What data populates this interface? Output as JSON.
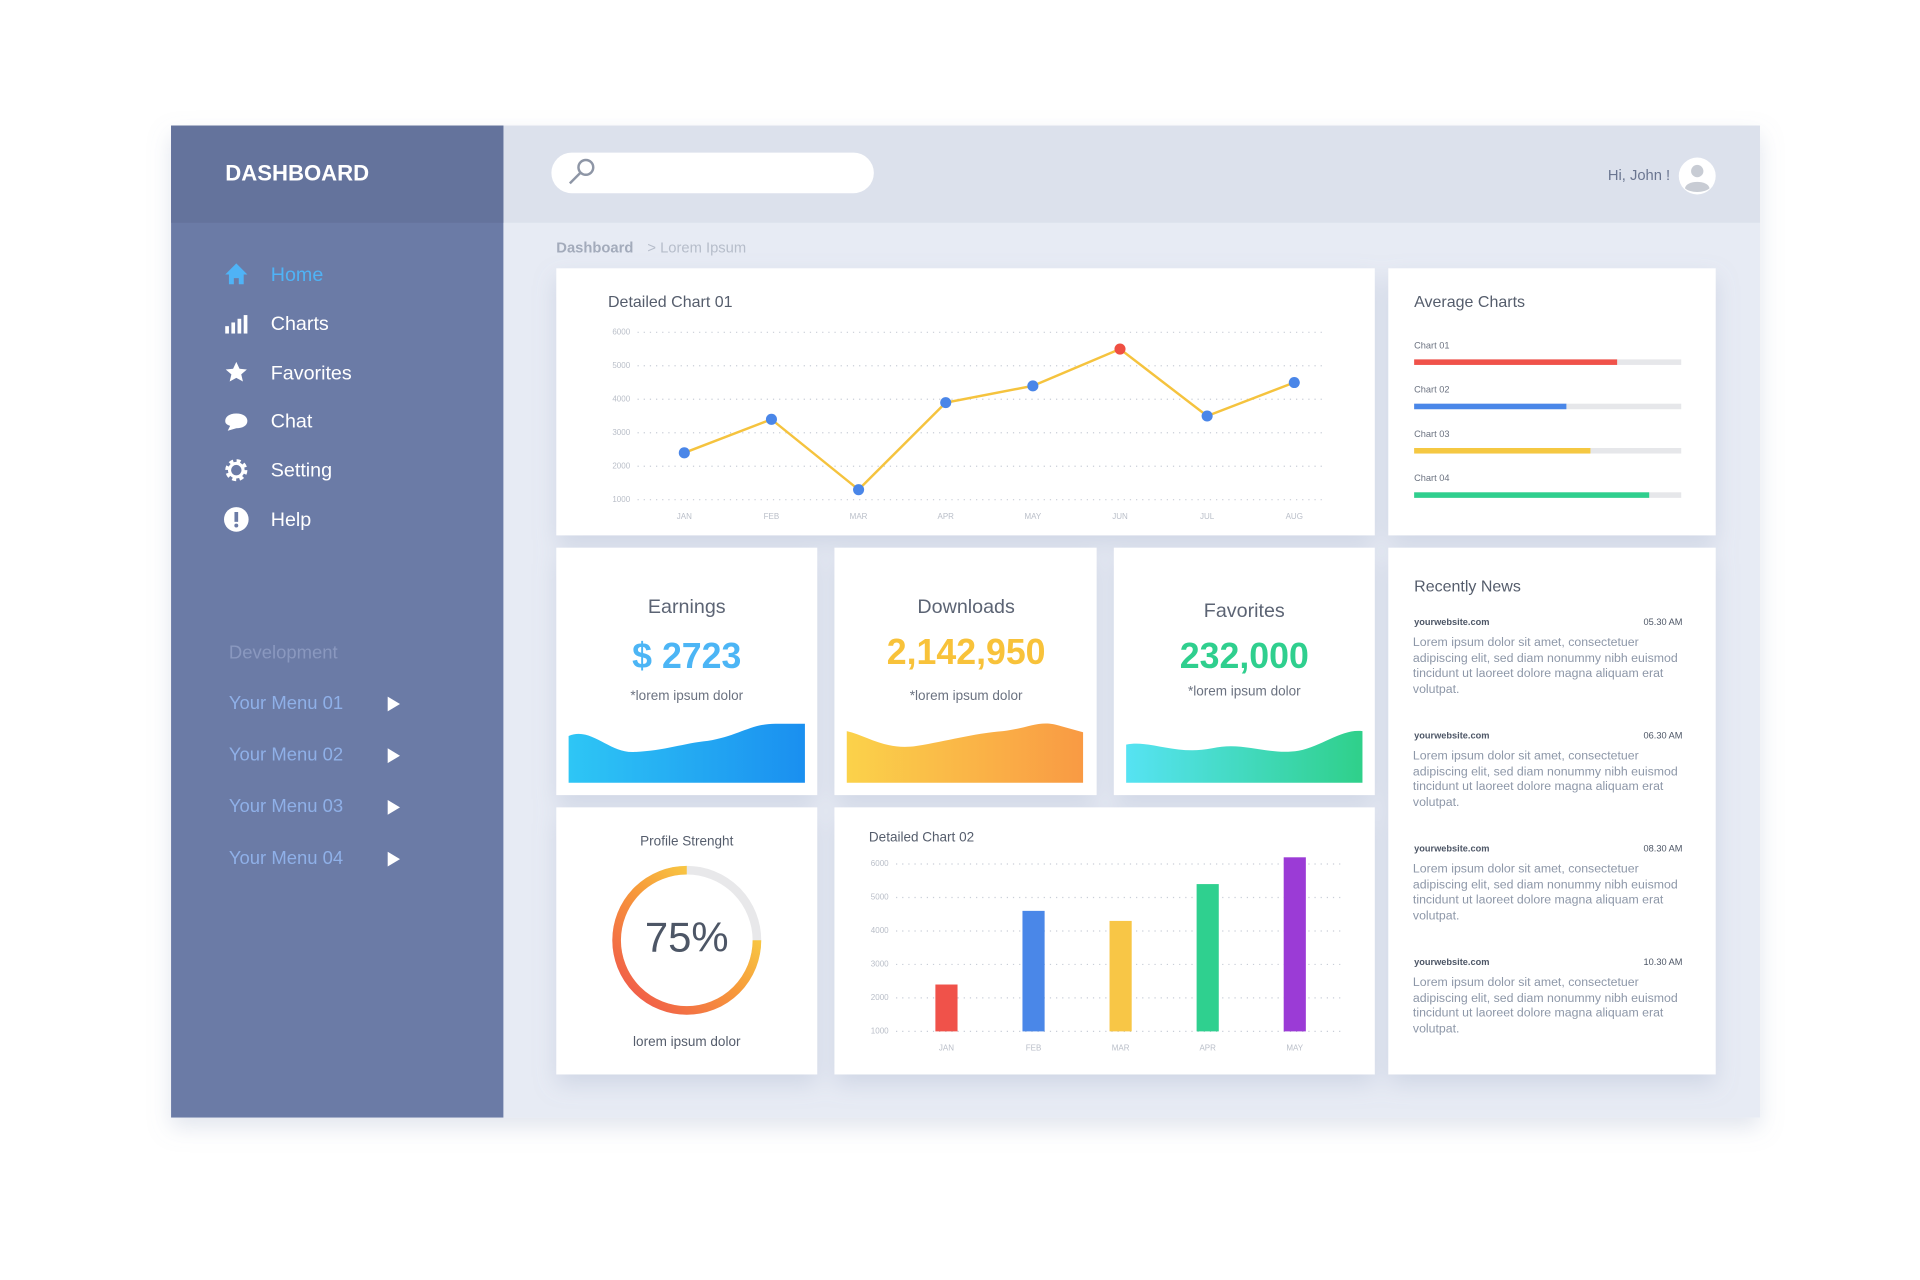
{
  "sidebar": {
    "title": "DASHBOARD",
    "menu": [
      "Home",
      "Charts",
      "Favorites",
      "Chat",
      "Setting",
      "Help"
    ],
    "section": "Development",
    "submenu": [
      "Your Menu 01",
      "Your Menu 02",
      "Your Menu 03",
      "Your Menu 04"
    ]
  },
  "header": {
    "greeting": "Hi, John !"
  },
  "breadcrumb": {
    "root": "Dashboard",
    "current": "> Lorem Ipsum"
  },
  "chart_data": [
    {
      "type": "line",
      "title": "Detailed Chart 01",
      "categories": [
        "JAN",
        "FEB",
        "MAR",
        "APR",
        "MAY",
        "JUN",
        "JUL",
        "AUG"
      ],
      "values": [
        2400,
        3400,
        1300,
        3900,
        4400,
        5500,
        3500,
        4500
      ],
      "color": "#f5c33e",
      "marker_colors": [
        "#4a86e8",
        "#4a86e8",
        "#4a86e8",
        "#4a86e8",
        "#4a86e8",
        "#ef4f42",
        "#4a86e8",
        "#4a86e8"
      ],
      "ylim": [
        1000,
        6000
      ],
      "yticks": [
        1000,
        2000,
        3000,
        4000,
        5000,
        6000
      ],
      "grid": true
    },
    {
      "type": "progress",
      "title": "Average Charts",
      "categories": [
        "Chart 01",
        "Chart 02",
        "Chart 03",
        "Chart 04"
      ],
      "values": [
        76,
        57,
        66,
        88
      ],
      "colors": [
        "#f0524a",
        "#4a87e8",
        "#f5c842",
        "#2fcf8e"
      ],
      "xlim": [
        0,
        100
      ]
    },
    {
      "type": "gauge",
      "title": "Profile Strenght",
      "value": 75,
      "value_label": "75%",
      "caption": "lorem ipsum dolor",
      "colors": [
        "#ef4d4d",
        "#f79a3a",
        "#f8ef4a"
      ]
    },
    {
      "type": "bar",
      "title": "Detailed Chart 02",
      "categories": [
        "JAN",
        "FEB",
        "MAR",
        "APR",
        "MAY"
      ],
      "values": [
        2400,
        4600,
        4300,
        5400,
        6200
      ],
      "colors": [
        "#f0524a",
        "#4a87e8",
        "#f8c646",
        "#2fd08f",
        "#9b3bd6"
      ],
      "ylim": [
        1000,
        6000
      ],
      "yticks": [
        1000,
        2000,
        3000,
        4000,
        5000,
        6000
      ],
      "grid": true
    }
  ],
  "stats": [
    {
      "title": "Earnings",
      "value": "$ 2723",
      "caption": "*lorem ipsum dolor",
      "color": "#4cb5f5"
    },
    {
      "title": "Downloads",
      "value": "2,142,950",
      "caption": "*lorem ipsum dolor",
      "color": "#f8c23a"
    },
    {
      "title": "Favorites",
      "value": "232,000",
      "caption": "*lorem ipsum dolor",
      "color": "#2fcf8e"
    }
  ],
  "news": {
    "title": "Recently News",
    "items": [
      {
        "source": "yourwebsite.com",
        "time": "05.30 AM",
        "text": "Lorem ipsum dolor sit amet, consectetuer adipiscing elit, sed diam nonummy nibh euismod tincidunt ut laoreet dolore magna aliquam erat volutpat."
      },
      {
        "source": "yourwebsite.com",
        "time": "06.30 AM",
        "text": "Lorem ipsum dolor sit amet, consectetuer adipiscing elit, sed diam nonummy nibh euismod tincidunt ut laoreet dolore magna aliquam erat volutpat."
      },
      {
        "source": "yourwebsite.com",
        "time": "08.30 AM",
        "text": "Lorem ipsum dolor sit amet, consectetuer adipiscing elit, sed diam nonummy nibh euismod tincidunt ut laoreet dolore magna aliquam erat volutpat."
      },
      {
        "source": "yourwebsite.com",
        "time": "10.30 AM",
        "text": "Lorem ipsum dolor sit amet, consectetuer adipiscing elit, sed diam nonummy nibh euismod tincidunt ut laoreet dolore magna aliquam erat volutpat."
      }
    ]
  }
}
